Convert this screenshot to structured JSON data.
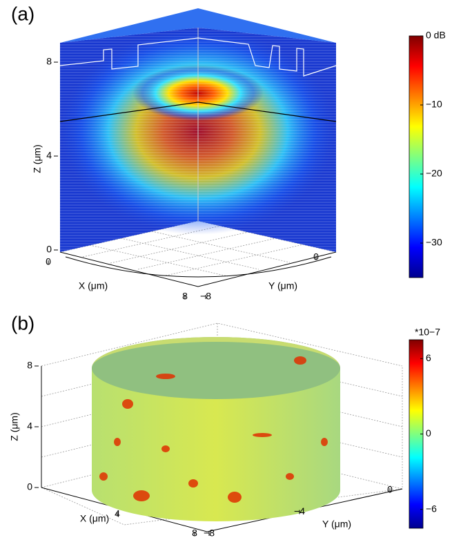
{
  "chart_data": [
    {
      "type": "field3d",
      "panel_label": "(a)",
      "zlabel": "Z (μm)",
      "xlabel": "X (μm)",
      "ylabel": "Y (μm)",
      "zlim": [
        0,
        8
      ],
      "zticks": [
        0,
        4,
        8
      ],
      "xlim": [
        0,
        8
      ],
      "xticks": [
        0,
        8
      ],
      "ylim": [
        -8,
        0
      ],
      "yticks": [
        {
          "value": -8,
          "label": "−8"
        },
        0
      ],
      "clim": [
        -35,
        0
      ],
      "cticks": [
        {
          "value": 0,
          "label": "0 dB"
        },
        {
          "value": -10,
          "label": "−10"
        },
        {
          "value": -20,
          "label": "−20"
        },
        {
          "value": -30,
          "label": "−30"
        }
      ]
    },
    {
      "type": "cylinder3d",
      "panel_label": "(b)",
      "zlabel": "Z (μm)",
      "xlabel": "X (μm)",
      "ylabel": "Y (μm)",
      "zlim": [
        0,
        8
      ],
      "zticks": [
        0,
        4,
        8
      ],
      "xlim": [
        0,
        8
      ],
      "xticks": [
        4,
        8
      ],
      "ylim": [
        -8,
        0
      ],
      "yticks": [
        {
          "value": -8,
          "label": "−8"
        },
        {
          "value": -4,
          "label": "−4"
        },
        0
      ],
      "clim": [
        -7.5,
        7.5
      ],
      "cscale_label": "*10−7",
      "cticks": [
        6,
        0,
        {
          "value": -6,
          "label": "−6"
        }
      ]
    }
  ]
}
